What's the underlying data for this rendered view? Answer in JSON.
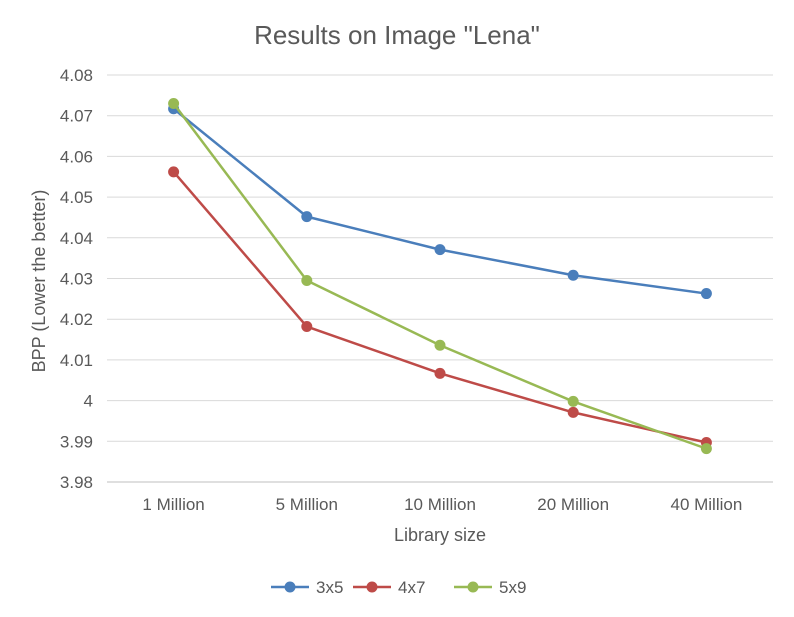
{
  "chart_data": {
    "type": "line",
    "title": "Results on Image \"Lena\"",
    "xlabel": "Library size",
    "ylabel": "BPP (Lower the better)",
    "categories": [
      "1 Million",
      "5 Million",
      "10 Million",
      "20 Million",
      "40 Million"
    ],
    "ylim": [
      3.98,
      4.08
    ],
    "yticks": [
      "4.08",
      "4.07",
      "4.06",
      "4.05",
      "4.04",
      "4.03",
      "4.02",
      "4.01",
      "4",
      "3.99",
      "3.98"
    ],
    "grid": true,
    "legend_position": "bottom",
    "series": [
      {
        "name": "3x5",
        "color": "#4a7ebb",
        "values": [
          4.0717,
          4.0452,
          4.0371,
          4.0308,
          4.0263
        ]
      },
      {
        "name": "4x7",
        "color": "#be4b48",
        "values": [
          4.0562,
          4.0182,
          4.0067,
          3.9971,
          3.9897
        ]
      },
      {
        "name": "5x9",
        "color": "#98b954",
        "values": [
          4.073,
          4.0295,
          4.0136,
          3.9998,
          3.9882
        ]
      }
    ]
  }
}
